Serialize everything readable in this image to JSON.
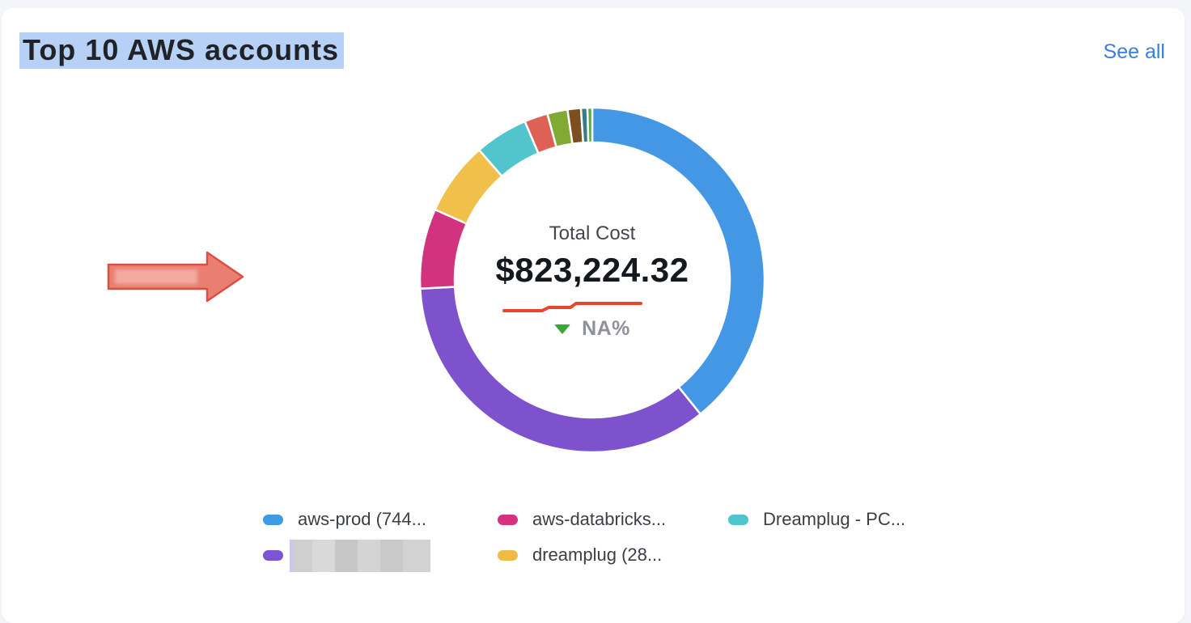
{
  "header": {
    "title": "Top 10 AWS accounts",
    "see_all_label": "See all"
  },
  "donut_center": {
    "label": "Total Cost",
    "value": "$823,224.32",
    "delta_value": "NA%",
    "delta_direction": "down",
    "delta_icon_color": "#37a935",
    "delta_text_color": "#8f929c",
    "sparkline_color": "#e9472d"
  },
  "chart_data": {
    "type": "pie",
    "donut": true,
    "title": "Top 10 AWS accounts",
    "center_label": "Total Cost",
    "center_value": "$823,224.32",
    "center_delta": "NA%",
    "legend_position": "bottom",
    "segments": [
      {
        "name": "aws-prod (744...",
        "percent": 39.2,
        "color": "#4397e4"
      },
      {
        "name": "(redacted)",
        "percent": 35.0,
        "color": "#7e52cd"
      },
      {
        "name": "aws-databricks...",
        "percent": 7.5,
        "color": "#d2337e"
      },
      {
        "name": "dreamplug (28...",
        "percent": 6.9,
        "color": "#f0c04b"
      },
      {
        "name": "Dreamplug - PC...",
        "percent": 5.0,
        "color": "#52c5cc"
      },
      {
        "name": "(label not visible)",
        "percent": 2.2,
        "color": "#de6156"
      },
      {
        "name": "(label not visible)",
        "percent": 1.9,
        "color": "#81aa34"
      },
      {
        "name": "(label not visible)",
        "percent": 1.25,
        "color": "#7d4e20"
      },
      {
        "name": "(label not visible)",
        "percent": 0.6,
        "color": "#3a7b87"
      },
      {
        "name": "(label not visible)",
        "percent": 0.45,
        "color": "#55ac42"
      }
    ]
  },
  "legend": {
    "items": [
      {
        "label": "aws-prod (744...",
        "color": "#3e9be3",
        "redacted": false,
        "col": 0,
        "row": 0
      },
      {
        "label": "",
        "color": "#7b55d6",
        "redacted": true,
        "col": 0,
        "row": 1
      },
      {
        "label": "aws-databricks...",
        "color": "#d6307f",
        "redacted": false,
        "col": 1,
        "row": 0
      },
      {
        "label": "dreamplug (28...",
        "color": "#efbb45",
        "redacted": false,
        "col": 1,
        "row": 1
      },
      {
        "label": "Dreamplug - PC...",
        "color": "#4ec5cc",
        "redacted": false,
        "col": 2,
        "row": 0
      }
    ]
  },
  "annotation": {
    "arrow_fill": "#ea7e70",
    "arrow_stroke": "#d85043"
  },
  "colors": {
    "page_bg": "#f4f5f8",
    "card_bg": "#ffffff",
    "title_highlight": "#b7d1f6",
    "link": "#3b7de2"
  }
}
